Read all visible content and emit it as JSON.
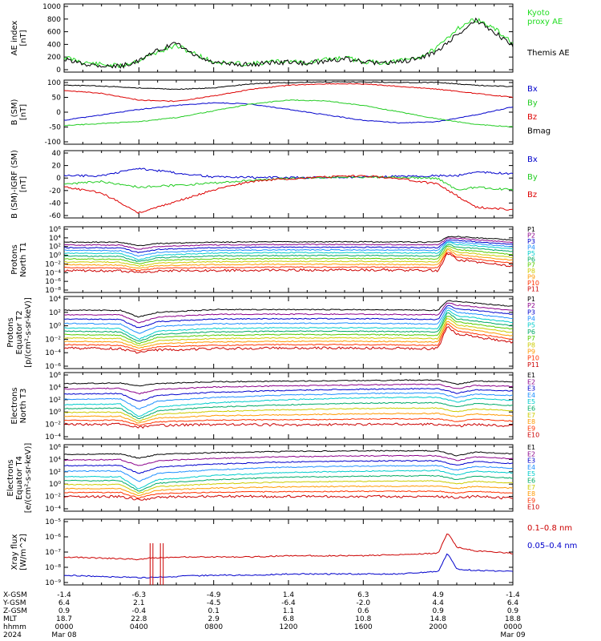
{
  "panels": [
    {
      "ylabel": [
        "AE index",
        "[nT]"
      ],
      "yticks": [
        "1000",
        "800",
        "600",
        "400",
        "200",
        "0"
      ],
      "legend": [
        {
          "text": "Kyoto",
          "color": "#22dd22"
        },
        {
          "text": "proxy AE",
          "color": "#22dd22"
        },
        {
          "text": "Themis AE",
          "color": "#000000"
        }
      ]
    },
    {
      "ylabel": [
        "B (SM)",
        "[nT]"
      ],
      "yticks": [
        "100",
        "50",
        "0",
        "-50",
        "-100"
      ],
      "legend": [
        {
          "text": "Bx",
          "color": "#0000cc"
        },
        {
          "text": "By",
          "color": "#22cc22"
        },
        {
          "text": "Bz",
          "color": "#dd0000"
        },
        {
          "text": "Bmag",
          "color": "#000000"
        }
      ]
    },
    {
      "ylabel": [
        "B (SM)-IGRF (SM)",
        "[nT]"
      ],
      "yticks": [
        "40",
        "20",
        "0",
        "-20",
        "-40",
        "-60"
      ],
      "legend": [
        {
          "text": "Bx",
          "color": "#0000cc"
        },
        {
          "text": "By",
          "color": "#22cc22"
        },
        {
          "text": "Bz",
          "color": "#dd0000"
        }
      ]
    },
    {
      "ylabel": [
        "Protons",
        "North T1"
      ],
      "yticks": [
        "10⁶",
        "10⁴",
        "10²",
        "10⁰",
        "10⁻²",
        "10⁻⁴",
        "10⁻⁶",
        "10⁻⁸"
      ],
      "legend": [
        {
          "text": "P1",
          "color": "#000000"
        },
        {
          "text": "P2",
          "color": "#8b008b"
        },
        {
          "text": "P3",
          "color": "#0000cc"
        },
        {
          "text": "P4",
          "color": "#1e90ff"
        },
        {
          "text": "P5",
          "color": "#00cccc"
        },
        {
          "text": "P6",
          "color": "#00aa66"
        },
        {
          "text": "P7",
          "color": "#55cc00"
        },
        {
          "text": "P8",
          "color": "#cccc00"
        },
        {
          "text": "P9",
          "color": "#ff9900"
        },
        {
          "text": "P10",
          "color": "#ff3300"
        },
        {
          "text": "P11",
          "color": "#cc0000"
        }
      ]
    },
    {
      "ylabel": [
        "Protons",
        "Equator T2",
        "[p/(cm²-s-sr-keV)]"
      ],
      "yticks": [
        "10⁴",
        "10²",
        "10⁰",
        "10⁻²",
        "10⁻⁴",
        "10⁻⁶"
      ],
      "legend": [
        {
          "text": "P1",
          "color": "#000000"
        },
        {
          "text": "P2",
          "color": "#8b008b"
        },
        {
          "text": "P3",
          "color": "#0000cc"
        },
        {
          "text": "P4",
          "color": "#1e90ff"
        },
        {
          "text": "P5",
          "color": "#00cccc"
        },
        {
          "text": "P6",
          "color": "#00aa66"
        },
        {
          "text": "P7",
          "color": "#55cc00"
        },
        {
          "text": "P8",
          "color": "#cccc00"
        },
        {
          "text": "P9",
          "color": "#ff9900"
        },
        {
          "text": "P10",
          "color": "#ff3300"
        },
        {
          "text": "P11",
          "color": "#cc0000"
        }
      ]
    },
    {
      "ylabel": [
        "Electrons",
        "North T3"
      ],
      "yticks": [
        "10⁶",
        "10⁴",
        "10²",
        "10⁰",
        "10⁻²",
        "10⁻⁴"
      ],
      "legend": [
        {
          "text": "E1",
          "color": "#000000"
        },
        {
          "text": "E2",
          "color": "#8b008b"
        },
        {
          "text": "E3",
          "color": "#0000cc"
        },
        {
          "text": "E4",
          "color": "#1e90ff"
        },
        {
          "text": "E5",
          "color": "#00cccc"
        },
        {
          "text": "E6",
          "color": "#00aa66"
        },
        {
          "text": "E7",
          "color": "#cccc00"
        },
        {
          "text": "E8",
          "color": "#ff9900"
        },
        {
          "text": "E9",
          "color": "#ff3300"
        },
        {
          "text": "E10",
          "color": "#cc0000"
        }
      ]
    },
    {
      "ylabel": [
        "Electrons",
        "Equator T4",
        "[e/(cm²-s-sr-keV)]"
      ],
      "yticks": [
        "10⁶",
        "10⁴",
        "10²",
        "10⁰",
        "10⁻²",
        "10⁻⁴"
      ],
      "legend": [
        {
          "text": "E1",
          "color": "#000000"
        },
        {
          "text": "E2",
          "color": "#8b008b"
        },
        {
          "text": "E3",
          "color": "#0000cc"
        },
        {
          "text": "E4",
          "color": "#1e90ff"
        },
        {
          "text": "E5",
          "color": "#00cccc"
        },
        {
          "text": "E6",
          "color": "#00aa66"
        },
        {
          "text": "E7",
          "color": "#cccc00"
        },
        {
          "text": "E8",
          "color": "#ff9900"
        },
        {
          "text": "E9",
          "color": "#ff3300"
        },
        {
          "text": "E10",
          "color": "#cc0000"
        }
      ]
    },
    {
      "ylabel": [
        "Xray flux",
        "[W/m^2]"
      ],
      "yticks": [
        "10⁻⁵",
        "10⁻⁶",
        "10⁻⁷",
        "10⁻⁸",
        "10⁻⁹"
      ],
      "legend": [
        {
          "text": "0.1–0.8 nm",
          "color": "#cc0000"
        },
        {
          "text": "0.05–0.4 nm",
          "color": "#0000cc"
        }
      ]
    }
  ],
  "footer": {
    "rows": [
      {
        "label": "X-GSM",
        "values": [
          "-1.4",
          "-6.3",
          "-4.9",
          "1.4",
          "6.3",
          "4.9",
          "-1.4"
        ]
      },
      {
        "label": "Y-GSM",
        "values": [
          "6.4",
          "2.1",
          "-4.5",
          "-6.4",
          "-2.0",
          "4.4",
          "6.4"
        ]
      },
      {
        "label": "Z-GSM",
        "values": [
          "0.9",
          "-0.4",
          "0.1",
          "1.1",
          "0.6",
          "0.9",
          "0.9"
        ]
      },
      {
        "label": "MLT",
        "values": [
          "18.7",
          "22.8",
          "2.9",
          "6.8",
          "10.8",
          "14.8",
          "18.8"
        ]
      },
      {
        "label": "hhmm",
        "values": [
          "0000",
          "0400",
          "0800",
          "1200",
          "1600",
          "2000",
          "0000"
        ]
      },
      {
        "label": "2024",
        "values": [
          "Mar 08",
          "",
          "",
          "",
          "",
          "",
          "Mar 09"
        ]
      }
    ]
  },
  "chart_data": [
    {
      "type": "line",
      "ylabel": "AE index [nT]",
      "ylim": [
        0,
        1000
      ],
      "x_hours": [
        0,
        1,
        2,
        3,
        4,
        5,
        6,
        7,
        8,
        9,
        10,
        11,
        12,
        13,
        14,
        15,
        16,
        17,
        18,
        19,
        20,
        21,
        22,
        23,
        24
      ],
      "series": [
        {
          "name": "Kyoto proxy AE",
          "values": [
            200,
            120,
            80,
            60,
            150,
            280,
            380,
            250,
            120,
            100,
            90,
            120,
            140,
            110,
            160,
            190,
            130,
            110,
            140,
            200,
            350,
            650,
            800,
            650,
            420
          ]
        },
        {
          "name": "Themis AE",
          "values": [
            160,
            100,
            70,
            50,
            140,
            300,
            420,
            220,
            110,
            90,
            80,
            110,
            120,
            100,
            140,
            170,
            120,
            100,
            130,
            180,
            300,
            550,
            780,
            600,
            380
          ]
        }
      ]
    },
    {
      "type": "line",
      "ylabel": "B (SM) [nT]",
      "ylim": [
        -110,
        110
      ],
      "x_hours": [
        0,
        2,
        4,
        6,
        8,
        10,
        12,
        14,
        16,
        18,
        20,
        22,
        24
      ],
      "series": [
        {
          "name": "Bx",
          "values": [
            -30,
            -10,
            10,
            25,
            35,
            30,
            10,
            -10,
            -30,
            -40,
            -35,
            -10,
            20
          ]
        },
        {
          "name": "By",
          "values": [
            -50,
            -42,
            -35,
            -20,
            5,
            30,
            45,
            42,
            25,
            0,
            -25,
            -45,
            -55
          ]
        },
        {
          "name": "Bz",
          "values": [
            80,
            70,
            45,
            40,
            60,
            85,
            100,
            105,
            105,
            95,
            85,
            70,
            55
          ]
        },
        {
          "name": "Bmag",
          "values": [
            100,
            97,
            90,
            85,
            90,
            105,
            110,
            112,
            112,
            110,
            110,
            100,
            95
          ]
        }
      ]
    },
    {
      "type": "line",
      "ylabel": "B (SM)-IGRF (SM) [nT]",
      "ylim": [
        -65,
        45
      ],
      "x_hours": [
        0,
        2,
        4,
        6,
        8,
        10,
        12,
        14,
        16,
        18,
        20,
        21,
        22,
        24
      ],
      "series": [
        {
          "name": "Bx",
          "values": [
            5,
            5,
            18,
            10,
            3,
            2,
            2,
            2,
            3,
            4,
            5,
            5,
            12,
            8
          ]
        },
        {
          "name": "By",
          "values": [
            -10,
            -5,
            -15,
            -12,
            -8,
            -3,
            0,
            2,
            3,
            2,
            0,
            -20,
            -15,
            -20
          ]
        },
        {
          "name": "Bz",
          "values": [
            -15,
            -25,
            -60,
            -40,
            -20,
            -5,
            0,
            3,
            5,
            0,
            -10,
            -30,
            -50,
            -55
          ]
        }
      ]
    },
    {
      "type": "line",
      "ylabel": "Protons North T1",
      "yscale": "log",
      "ylim_exp": [
        -8,
        6
      ],
      "x_hours": [
        0,
        3,
        4,
        5,
        8,
        12,
        16,
        20,
        20.5,
        21,
        24
      ],
      "series": [
        {
          "name": "P1",
          "values_log10": [
            3.0,
            3.0,
            2.2,
            2.7,
            3.0,
            3.1,
            3.1,
            3.0,
            4.2,
            4.3,
            3.5
          ]
        },
        {
          "name": "P5",
          "values_log10": [
            0.5,
            0.4,
            -1.0,
            0.0,
            0.5,
            0.6,
            0.6,
            0.5,
            3.0,
            2.5,
            1.5
          ]
        },
        {
          "name": "P11",
          "values_log10": [
            -3.5,
            -3.6,
            -4.0,
            -3.6,
            -3.5,
            -3.4,
            -3.4,
            -3.5,
            0.5,
            -1.0,
            -2.5
          ]
        }
      ]
    },
    {
      "type": "line",
      "ylabel": "Protons Equator T2 [p/(cm²-s-sr-keV)]",
      "yscale": "log",
      "ylim_exp": [
        -6,
        4
      ],
      "x_hours": [
        0,
        3,
        4,
        5,
        8,
        12,
        16,
        20,
        20.5,
        21,
        24
      ],
      "series": [
        {
          "name": "P1",
          "values_log10": [
            2.3,
            2.3,
            1.3,
            2.0,
            2.4,
            2.4,
            2.4,
            2.3,
            3.8,
            3.6,
            2.9
          ]
        },
        {
          "name": "P5",
          "values_log10": [
            -0.3,
            -0.4,
            -2.0,
            -0.8,
            -0.4,
            -0.3,
            -0.3,
            -0.4,
            2.4,
            1.5,
            0.5
          ]
        },
        {
          "name": "P11",
          "values_log10": [
            -3.3,
            -3.4,
            -4.0,
            -3.6,
            -3.4,
            -3.3,
            -3.3,
            -3.4,
            0.0,
            -1.2,
            -2.5
          ]
        }
      ]
    },
    {
      "type": "line",
      "ylabel": "Electrons North T3",
      "yscale": "log",
      "ylim_exp": [
        -4,
        6
      ],
      "x_hours": [
        0,
        3,
        4,
        5,
        8,
        12,
        16,
        20,
        21,
        22,
        24
      ],
      "series": [
        {
          "name": "E1",
          "values_log10": [
            4.6,
            4.7,
            4.2,
            4.6,
            4.9,
            5.0,
            5.1,
            5.2,
            4.5,
            5.0,
            4.9
          ]
        },
        {
          "name": "E5",
          "values_log10": [
            1.2,
            1.3,
            -0.8,
            0.8,
            1.5,
            2.0,
            2.3,
            2.4,
            1.6,
            2.2,
            1.9
          ]
        },
        {
          "name": "E10",
          "values_log10": [
            -2.0,
            -2.0,
            -2.5,
            -2.2,
            -2.0,
            -2.1,
            -2.0,
            -2.0,
            -2.3,
            -2.0,
            -2.3
          ]
        }
      ]
    },
    {
      "type": "line",
      "ylabel": "Electrons Equator T4 [e/(cm²-s-sr-keV)]",
      "yscale": "log",
      "ylim_exp": [
        -4,
        6
      ],
      "x_hours": [
        0,
        3,
        4,
        5,
        8,
        12,
        16,
        20,
        21,
        22,
        24
      ],
      "series": [
        {
          "name": "E1",
          "values_log10": [
            4.8,
            4.9,
            4.2,
            4.8,
            5.1,
            5.3,
            5.4,
            5.4,
            4.6,
            5.2,
            4.9
          ]
        },
        {
          "name": "E5",
          "values_log10": [
            1.2,
            1.2,
            -0.8,
            0.7,
            1.4,
            1.9,
            2.1,
            2.2,
            1.5,
            2.1,
            1.8
          ]
        },
        {
          "name": "E10",
          "values_log10": [
            -2.0,
            -2.0,
            -2.6,
            -2.1,
            -2.0,
            -2.0,
            -2.0,
            -2.0,
            -2.2,
            -2.0,
            -2.3
          ]
        }
      ]
    },
    {
      "type": "line",
      "ylabel": "Xray flux [W/m^2]",
      "yscale": "log",
      "ylim_exp": [
        -9.6,
        -4.6
      ],
      "x_hours": [
        0,
        2,
        4,
        4.5,
        6,
        8,
        10,
        12,
        14,
        16,
        18,
        20,
        20.5,
        21,
        22,
        24
      ],
      "series": [
        {
          "name": "0.1–0.8 nm",
          "values_log10": [
            -7.5,
            -7.6,
            -7.7,
            -7.6,
            -7.5,
            -7.5,
            -7.5,
            -7.4,
            -7.4,
            -7.4,
            -7.3,
            -7.2,
            -5.5,
            -6.7,
            -7.0,
            -7.2
          ]
        },
        {
          "name": "0.05–0.4 nm",
          "values_log10": [
            -9.0,
            -9.1,
            -9.2,
            -9.2,
            -9.1,
            -9.0,
            -9.0,
            -8.9,
            -8.9,
            -8.9,
            -8.9,
            -8.7,
            -7.2,
            -8.5,
            -8.6,
            -8.7
          ]
        }
      ]
    }
  ]
}
